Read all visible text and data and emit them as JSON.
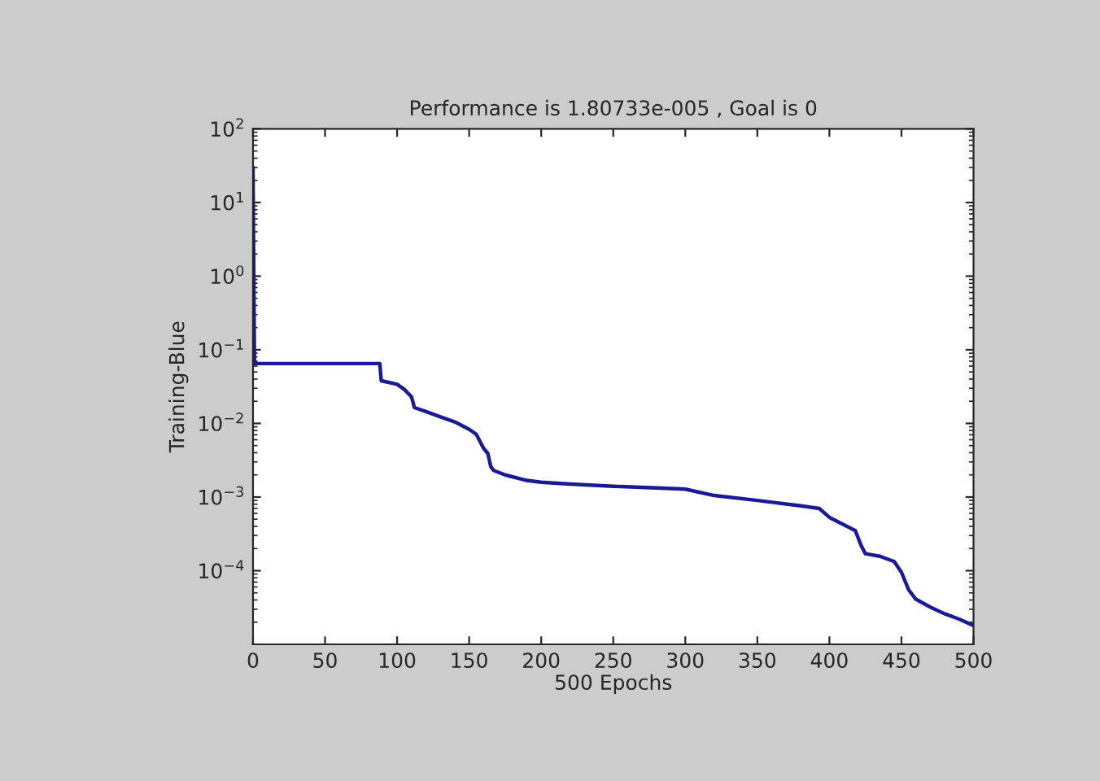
{
  "chart_data": {
    "type": "line",
    "title": "Performance is 1.80733e-005 , Goal is 0",
    "xlabel": "500 Epochs",
    "ylabel": "Training-Blue",
    "log": true,
    "xlim": [
      0,
      500
    ],
    "xticks": [
      0,
      50,
      100,
      150,
      200,
      250,
      300,
      350,
      400,
      450,
      500
    ],
    "ylim": [
      1e-05,
      100
    ],
    "yticks": [
      {
        "value": 0.0001,
        "label": "10$^{−4}$"
      },
      {
        "value": 0.001,
        "label": "10$^{−3}$"
      },
      {
        "value": 0.01,
        "label": "10$^{−2}$"
      },
      {
        "value": 0.1,
        "label": "10$^{−1}$"
      },
      {
        "value": 1,
        "label": "10$^{0}$"
      },
      {
        "value": 10,
        "label": "10$^{1}$"
      },
      {
        "value": 100,
        "label": "10$^{2}$"
      }
    ],
    "grid": false,
    "x": [
      0,
      1,
      88,
      89,
      100,
      105,
      110,
      112,
      120,
      130,
      140,
      150,
      155,
      160,
      163,
      165,
      167,
      175,
      190,
      200,
      220,
      250,
      280,
      300,
      320,
      350,
      380,
      393,
      400,
      410,
      418,
      422,
      425,
      435,
      445,
      450,
      455,
      460,
      470,
      480,
      490,
      500
    ],
    "series": [
      {
        "color": "#1a1a99",
        "values": [
          30,
          0.065,
          0.065,
          0.038,
          0.034,
          0.029,
          0.023,
          0.0164,
          0.0145,
          0.0123,
          0.0105,
          0.0083,
          0.0071,
          0.0046,
          0.0039,
          0.0026,
          0.0023,
          0.002,
          0.00168,
          0.00159,
          0.0015,
          0.0014,
          0.00133,
          0.00128,
          0.00105,
          0.0009,
          0.00076,
          0.0007,
          0.00053,
          0.00042,
          0.00035,
          0.00022,
          0.00017,
          0.000157,
          0.000133,
          9.5e-05,
          5.5e-05,
          4.1e-05,
          3.2e-05,
          2.6e-05,
          2.2e-05,
          1.8e-05
        ]
      }
    ]
  }
}
